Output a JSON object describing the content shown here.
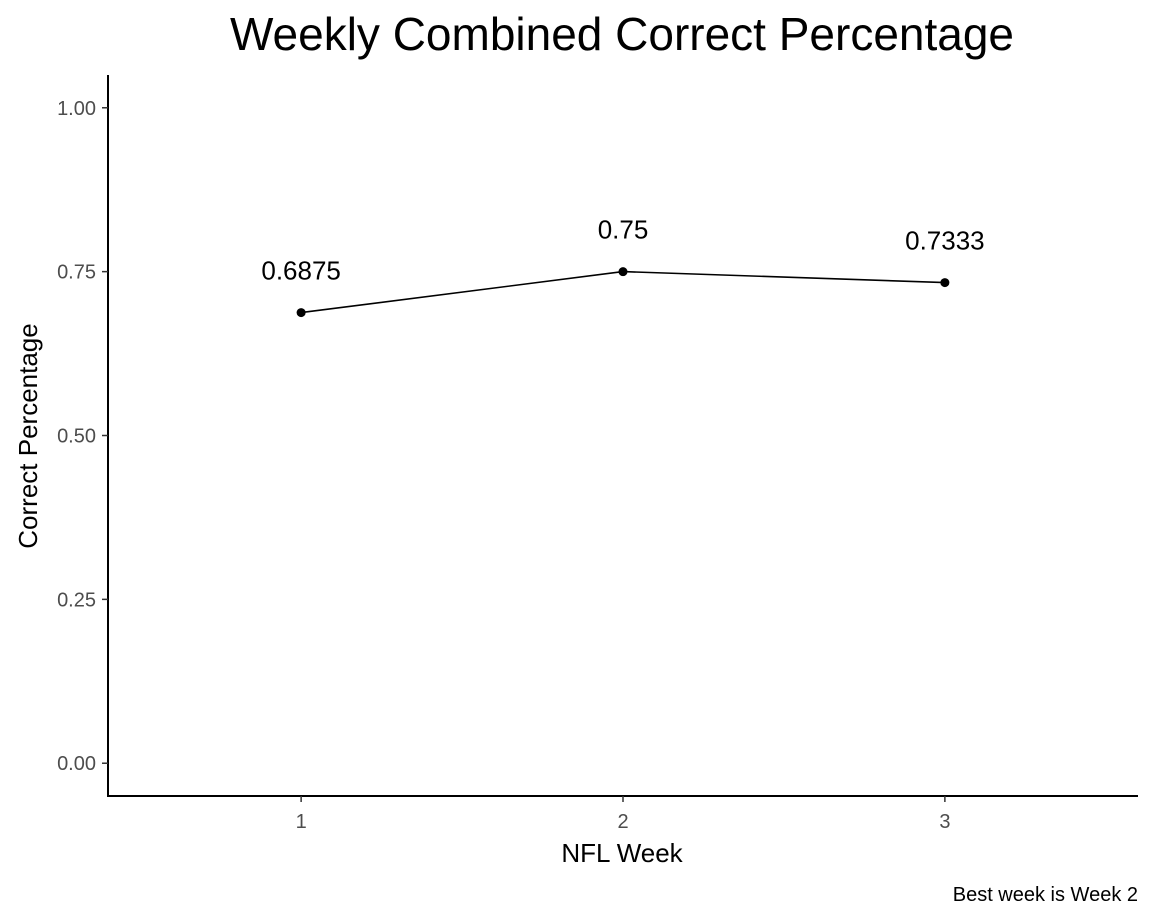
{
  "chart_data": {
    "type": "line",
    "title": "Weekly Combined Correct Percentage",
    "xlabel": "NFL Week",
    "ylabel": "Correct Percentage",
    "caption": "Best week is Week 2",
    "x": [
      1,
      2,
      3
    ],
    "x_tick_labels": [
      "1",
      "2",
      "3"
    ],
    "series": [
      {
        "values": [
          0.6875,
          0.75,
          0.7333
        ],
        "data_labels": [
          "0.6875",
          "0.75",
          "0.7333"
        ]
      }
    ],
    "xlim": [
      0.4,
      3.6
    ],
    "ylim": [
      -0.05,
      1.05
    ],
    "y_ticks": [
      0,
      0.25,
      0.5,
      0.75,
      1
    ],
    "y_tick_labels": [
      "0.00",
      "0.25",
      "0.50",
      "0.75",
      "1.00"
    ],
    "grid": false,
    "legend": "none",
    "colors": {
      "line": "#000000",
      "points": "#000000",
      "axis": "#000000",
      "tick_text": "#4d4d4d"
    }
  }
}
